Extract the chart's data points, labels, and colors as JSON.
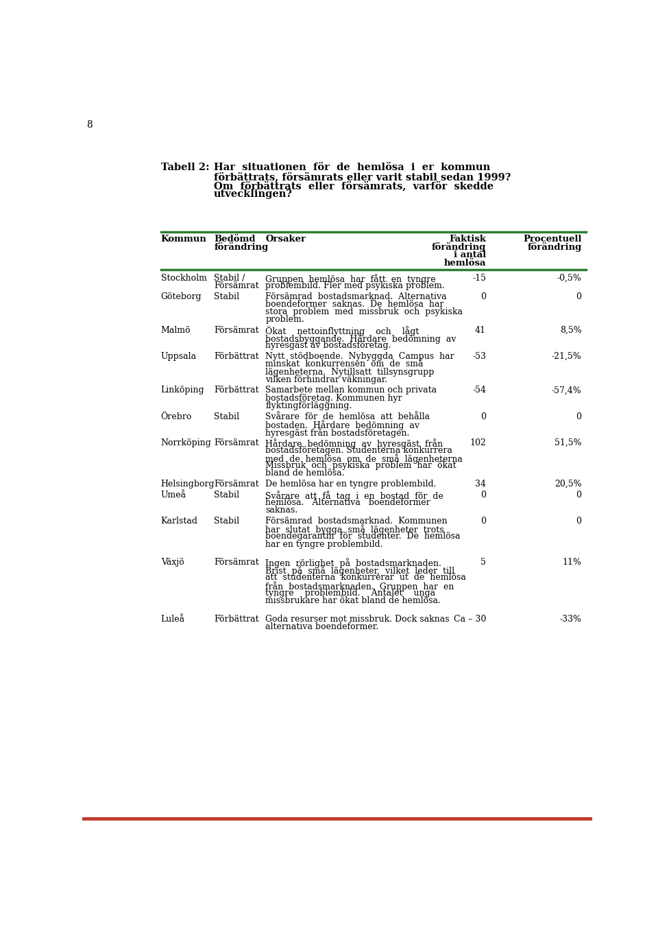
{
  "page_number": "8",
  "title_label": "Tabell 2:",
  "title_lines": [
    "Har  situationen  för  de  hemlösa  i  er  kommun",
    "förbättrats, försämrats eller varit stabil sedan 1999?",
    "Om  förbättrats  eller  försämrats,  varför  skedde",
    "utvecklingen?"
  ],
  "header_line_color": "#2e7d32",
  "bottom_line_color": "#c0392b",
  "col_headers": {
    "kommun": "Kommun",
    "bedömd": [
      "Bedömd",
      "förändring"
    ],
    "orsaker": "Orsaker",
    "faktisk": [
      "Faktisk",
      "förändring",
      "i antal",
      "hemlösa"
    ],
    "procentuell": [
      "Procentuell",
      "förändring"
    ]
  },
  "rows": [
    {
      "kommun": "Stockholm",
      "bedömd": [
        "Stabil /",
        "Försämrat"
      ],
      "orsaker": [
        "Gruppen  hemlösa  har  fått  en  tyngre",
        "problembild. Fler med psykiska problem."
      ],
      "faktisk": "-15",
      "procentuell": "-0,5%",
      "extra_before": 0
    },
    {
      "kommun": "Göteborg",
      "bedömd": [
        "Stabil"
      ],
      "orsaker": [
        "Försämrad  bostadsmarknad.  Alternativa",
        "boendeformer  saknas.  De  hemlösa  har",
        "stora  problem  med  missbruk  och  psykiska",
        "problem."
      ],
      "faktisk": "0",
      "procentuell": "0",
      "extra_before": 0
    },
    {
      "kommun": "Malmö",
      "bedömd": [
        "Försämrat"
      ],
      "orsaker": [
        "Ökat    nettoinflyttning    och    lågt",
        "bostadsbyggande.  Hårdare  bedömning  av",
        "hyresgäst av bostadsföretag."
      ],
      "faktisk": "41",
      "procentuell": "8,5%",
      "extra_before": 0
    },
    {
      "kommun": "Uppsala",
      "bedömd": [
        "Förbättrat"
      ],
      "orsaker": [
        "Nytt  stödboende.  Nybyggda  Campus  har",
        "minskat  konkurrensen  om  de  små",
        "lägenheterna.  Nytillsatt  tillsynsgrupp",
        "vilken förhindrar väkningar."
      ],
      "faktisk": "-53",
      "procentuell": "-21,5%",
      "extra_before": 0
    },
    {
      "kommun": "Linköping",
      "bedömd": [
        "Förbättrat"
      ],
      "orsaker": [
        "Samarbete mellan kommun och privata",
        "bostadsföretag. Kommunen hyr",
        "flyktingförläggning."
      ],
      "faktisk": "-54",
      "procentuell": "-57,4%",
      "extra_before": 0
    },
    {
      "kommun": "Örebro",
      "bedömd": [
        "Stabil"
      ],
      "orsaker": [
        "Svårare  för  de  hemlösa  att  behålla",
        "bostaden.  Hårdare  bedömning  av",
        "hyresgäst från bostadsföretagen."
      ],
      "faktisk": "0",
      "procentuell": "0",
      "extra_before": 0
    },
    {
      "kommun": "Norrköping",
      "bedömd": [
        "Försämrat"
      ],
      "orsaker": [
        "Hårdare  bedömning  av  hyresgäst  från",
        "bostadsföretagen. Studenterna konkurrera",
        "med  de  hemlösa  om  de  små  lägenheterna",
        "Missbruk  och  psykiska  problem  har  ökat",
        "bland de hemlösa."
      ],
      "faktisk": "102",
      "procentuell": "51,5%",
      "extra_before": 0
    },
    {
      "kommun": "Helsingborg",
      "bedömd": [
        "Försämrat"
      ],
      "orsaker": [
        "De hemlösa har en tyngre problembild."
      ],
      "faktisk": "34",
      "procentuell": "20,5%",
      "extra_before": 0
    },
    {
      "kommun": "Umeå",
      "bedömd": [
        "Stabil"
      ],
      "orsaker": [
        "Svårare  att  få  tag  i  en  bostad  för  de",
        "hemlösa.   Alternativa   boendeformer",
        "saknas."
      ],
      "faktisk": "0",
      "procentuell": "0",
      "extra_before": 0
    },
    {
      "kommun": "Karlstad",
      "bedömd": [
        "Stabil"
      ],
      "orsaker": [
        "Försämrad  bostadsmarknad.  Kommunen",
        "har  slutat  bygga  små  lägenheter  trots",
        "boendegarantin  för  studenter.  De  hemlösa",
        "har en tyngre problembild."
      ],
      "faktisk": "0",
      "procentuell": "0",
      "extra_before": 0
    },
    {
      "kommun": "Växjö",
      "bedömd": [
        "Försämrat"
      ],
      "orsaker": [
        "Ingen  rörlighet  på  bostadsmarknaden.",
        "Brist  på  små  lägenheter,  vilket  leder  till",
        "att  studenterna  konkurrerar  ut  de  hemlösa",
        "från  bostadsmarknaden.  Gruppen  har  en",
        "tyngre    problembild.    Antalet    unga",
        "missbrukare har ökat bland de hemlösa."
      ],
      "faktisk": "5",
      "procentuell": "11%",
      "extra_before": 14
    },
    {
      "kommun": "Luleå",
      "bedömd": [
        "Förbättrat"
      ],
      "orsaker": [
        "Goda resurser mot missbruk. Dock saknas",
        "alternativa boendeformer."
      ],
      "faktisk": "Ca – 30",
      "procentuell": "-33%",
      "extra_before": 14
    }
  ],
  "background_color": "#ffffff",
  "text_color": "#000000",
  "font_size": 9.0,
  "title_font_size": 10.5,
  "header_font_size": 9.5
}
